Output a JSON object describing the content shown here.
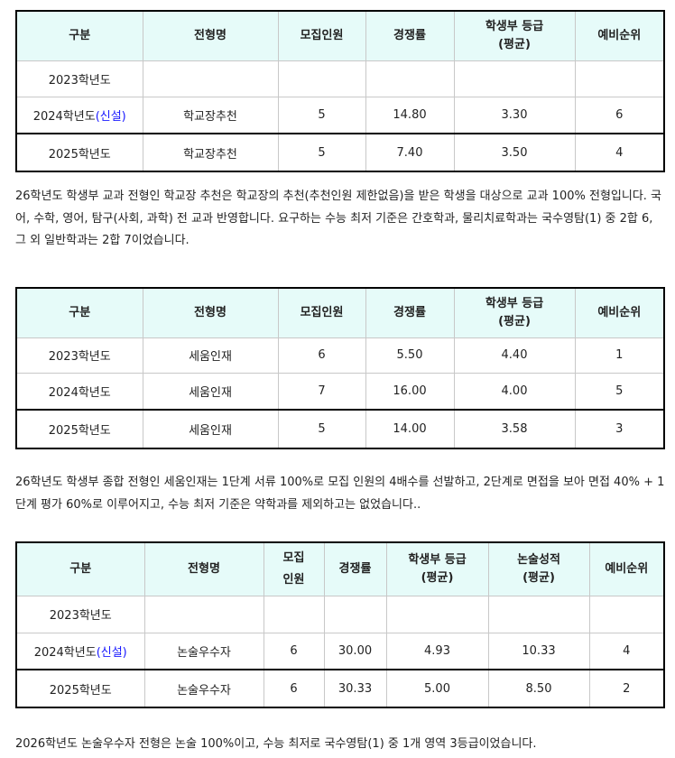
{
  "table1": {
    "headers": [
      "구분",
      "전형명",
      "모집인원",
      "경쟁률",
      "학생부 등급\n(평균)",
      "예비순위"
    ],
    "rows": [
      {
        "year": "2023학년도",
        "tag": "",
        "name": "",
        "count": "",
        "ratio": "",
        "grade": "",
        "waitlist": ""
      },
      {
        "year": "2024학년도",
        "tag": "(신설)",
        "name": "학교장추천",
        "count": "5",
        "ratio": "14.80",
        "grade": "3.30",
        "waitlist": "6"
      },
      {
        "year": "2025학년도",
        "tag": "",
        "name": "학교장추천",
        "count": "5",
        "ratio": "7.40",
        "grade": "3.50",
        "waitlist": "4"
      }
    ]
  },
  "paragraph1": "26학년도 학생부 교과 전형인 학교장 추천은 학교장의 추천(추천인원 제한없음)을 받은 학생을 대상으로 교과 100% 전형입니다. 국어, 수학, 영어, 탐구(사회, 과학) 전 교과 반영합니다. 요구하는 수능 최저 기준은 간호학과, 물리치료학과는 국수영탐(1) 중 2합 6, 그 외 일반학과는 2합 7이었습니다.",
  "table2": {
    "headers": [
      "구분",
      "전형명",
      "모집인원",
      "경쟁률",
      "학생부 등급\n(평균)",
      "예비순위"
    ],
    "rows": [
      {
        "year": "2023학년도",
        "tag": "",
        "name": "세움인재",
        "count": "6",
        "ratio": "5.50",
        "grade": "4.40",
        "waitlist": "1"
      },
      {
        "year": "2024학년도",
        "tag": "",
        "name": "세움인재",
        "count": "7",
        "ratio": "16.00",
        "grade": "4.00",
        "waitlist": "5"
      },
      {
        "year": "2025학년도",
        "tag": "",
        "name": "세움인재",
        "count": "5",
        "ratio": "14.00",
        "grade": "3.58",
        "waitlist": "3"
      }
    ]
  },
  "paragraph2": "26학년도 학생부 종합 전형인 세움인재는 1단계 서류 100%로 모집 인원의 4배수를 선발하고, 2단계로 면접을 보아 면접 40% + 1단계 평가 60%로 이루어지고, 수능 최저 기준은 약학과를 제외하고는 없었습니다..",
  "table3": {
    "headers": [
      "구분",
      "전형명",
      "모집\n인원",
      "경쟁률",
      "학생부 등급\n(평균)",
      "논술성적\n(평균)",
      "예비순위"
    ],
    "rows": [
      {
        "year": "2023학년도",
        "tag": "",
        "name": "",
        "count": "",
        "ratio": "",
        "grade": "",
        "essay": "",
        "waitlist": ""
      },
      {
        "year": "2024학년도",
        "tag": "(신설)",
        "name": "논술우수자",
        "count": "6",
        "ratio": "30.00",
        "grade": "4.93",
        "essay": "10.33",
        "waitlist": "4"
      },
      {
        "year": "2025학년도",
        "tag": "",
        "name": "논술우수자",
        "count": "6",
        "ratio": "30.33",
        "grade": "5.00",
        "essay": "8.50",
        "waitlist": "2"
      }
    ]
  },
  "paragraph3": "2026학년도 논술우수자 전형은 논술 100%이고, 수능 최저로 국수영탐(1) 중 1개 영역 3등급이었습니다.",
  "colors": {
    "header_bg": "#e6fbf9",
    "new_tag": "#1a1aff"
  }
}
